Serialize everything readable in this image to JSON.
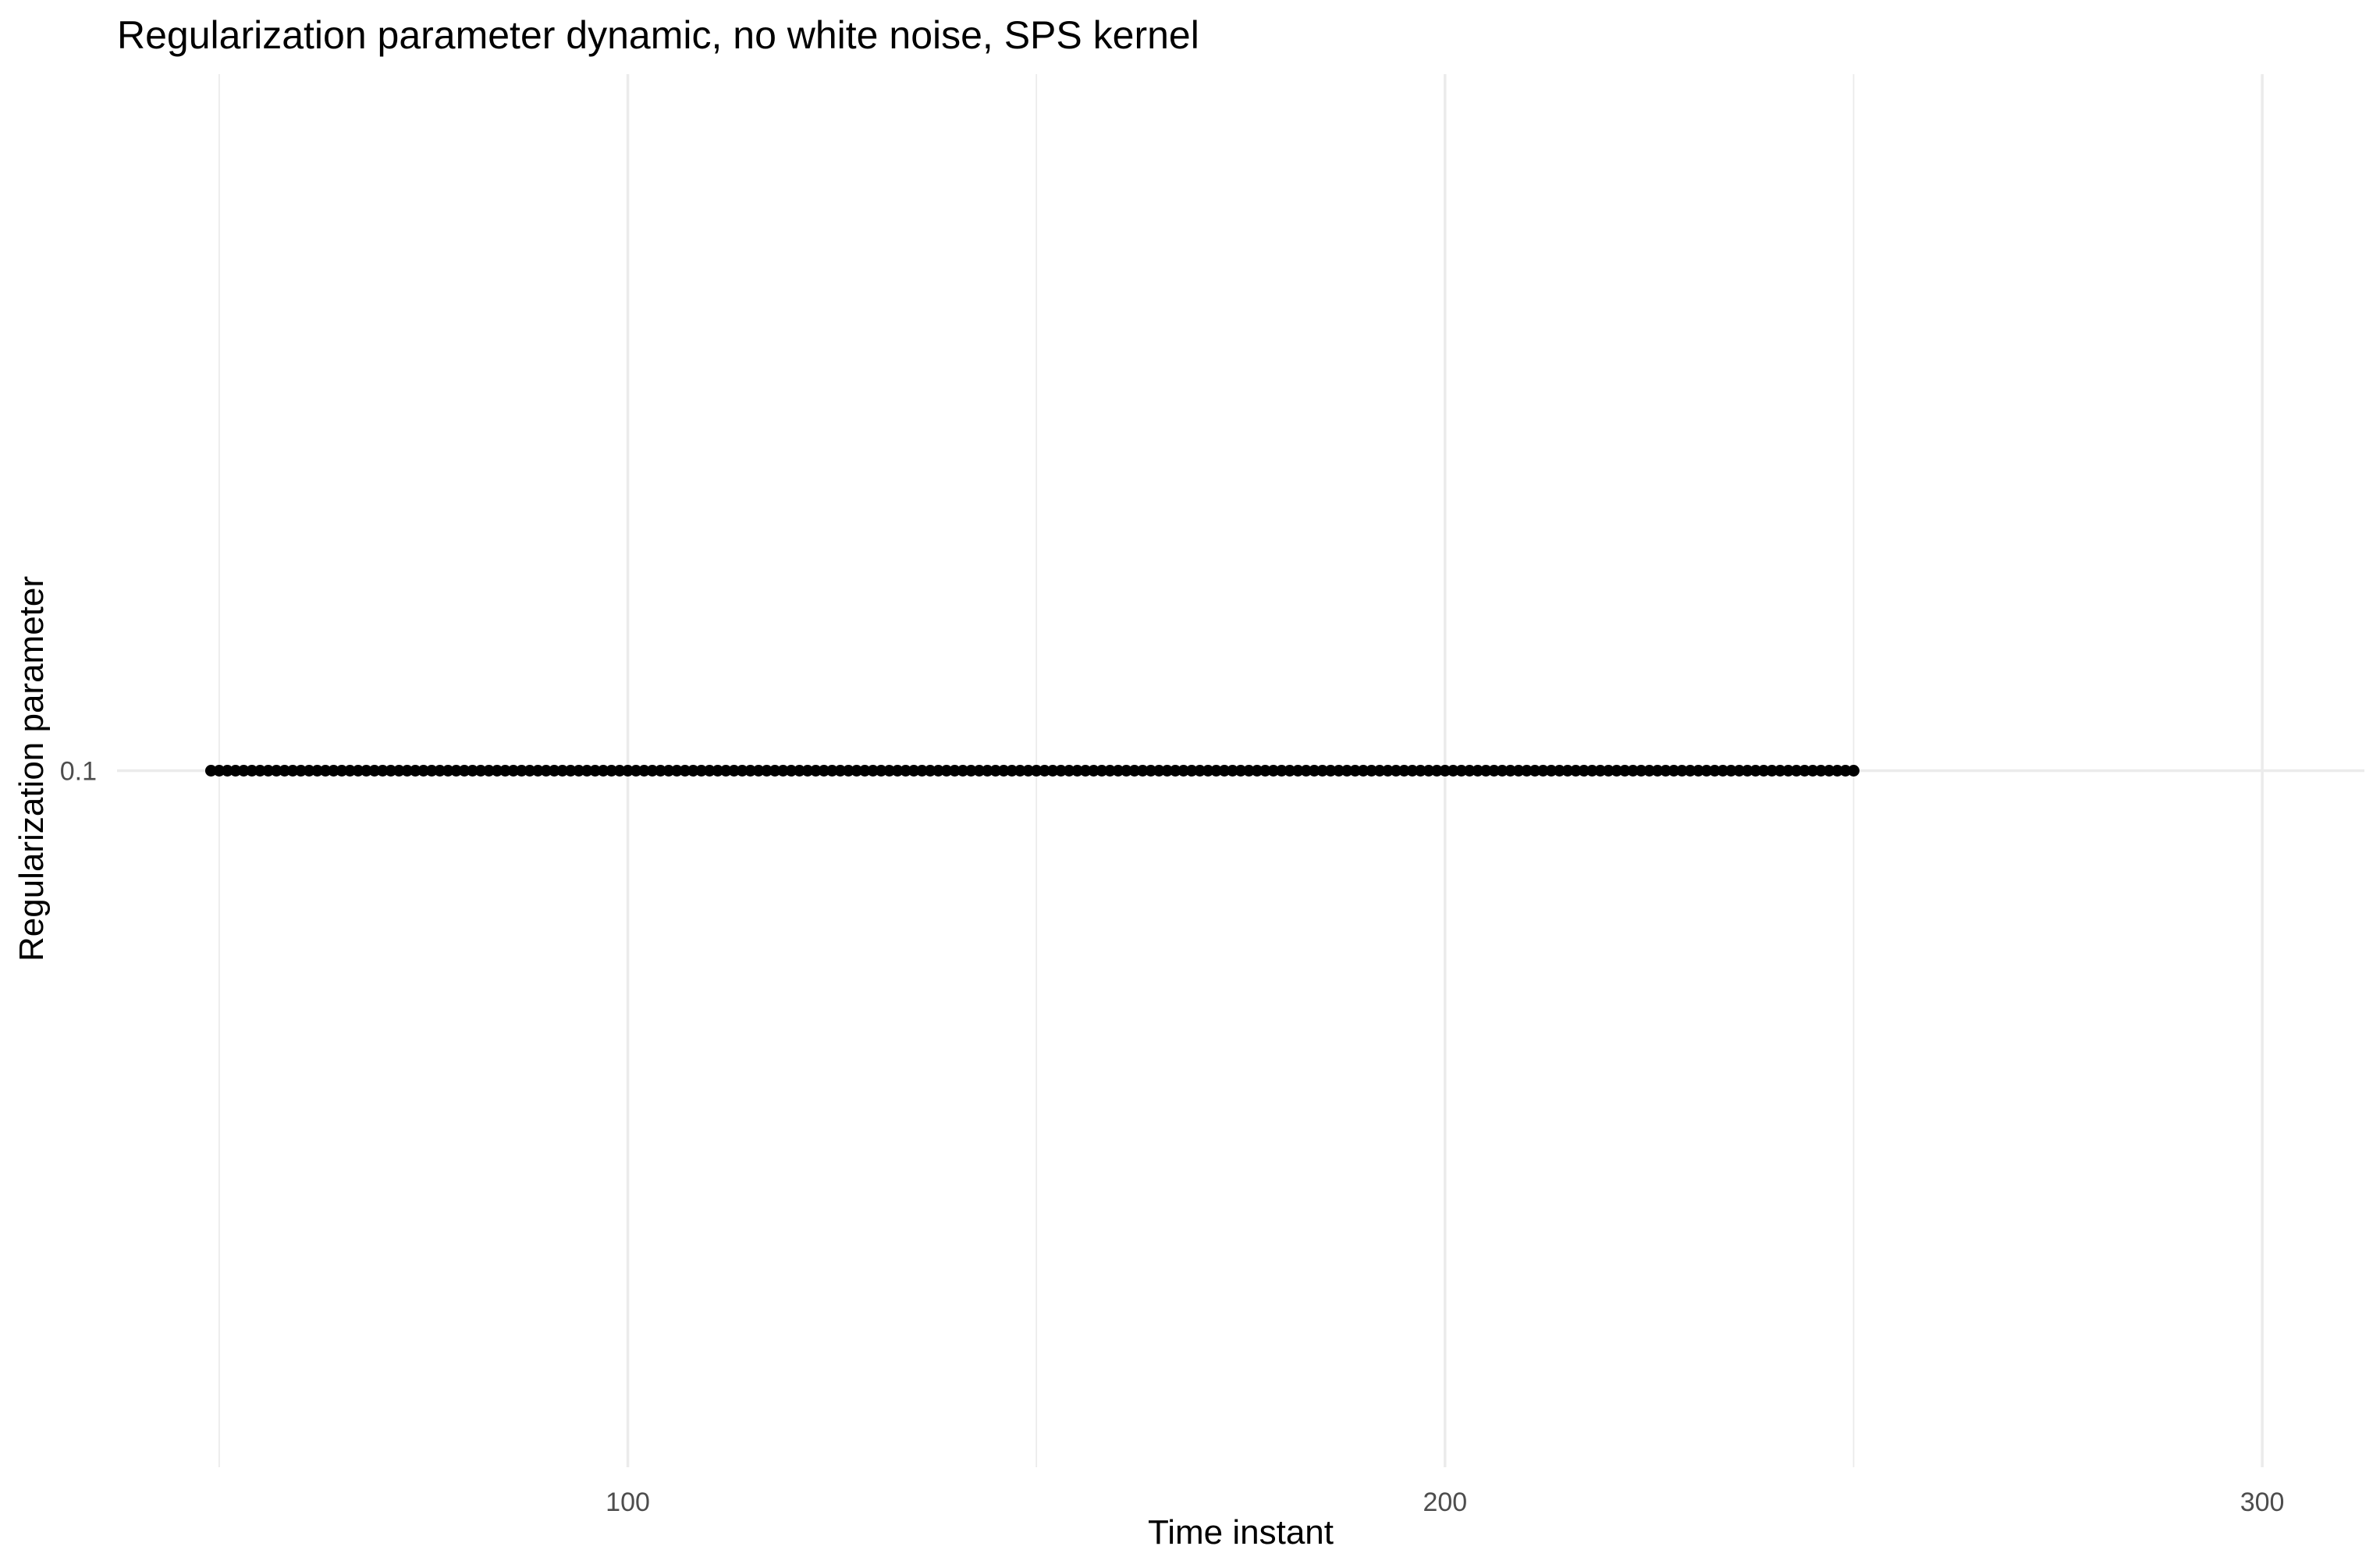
{
  "chart_data": {
    "type": "scatter",
    "title": "Regularization parameter dynamic, no white noise, SPS kernel",
    "xlabel": "Time instant",
    "ylabel": "Regularization parameter",
    "xlim": [
      37.5,
      312.5
    ],
    "ylim": [
      0.0575,
      0.1425
    ],
    "x_major_ticks": [
      100,
      200,
      300
    ],
    "x_tick_labels": [
      "100",
      "200",
      "300"
    ],
    "x_minor_gridlines": [
      50,
      150,
      250
    ],
    "y_major_ticks": [
      0.1
    ],
    "y_tick_labels": [
      "0.1"
    ],
    "grid": true,
    "legend": "none",
    "point_color": "#000000",
    "series": [
      {
        "x_start": 49,
        "x_end": 250,
        "x_step": 1,
        "y": 0.1
      }
    ]
  }
}
